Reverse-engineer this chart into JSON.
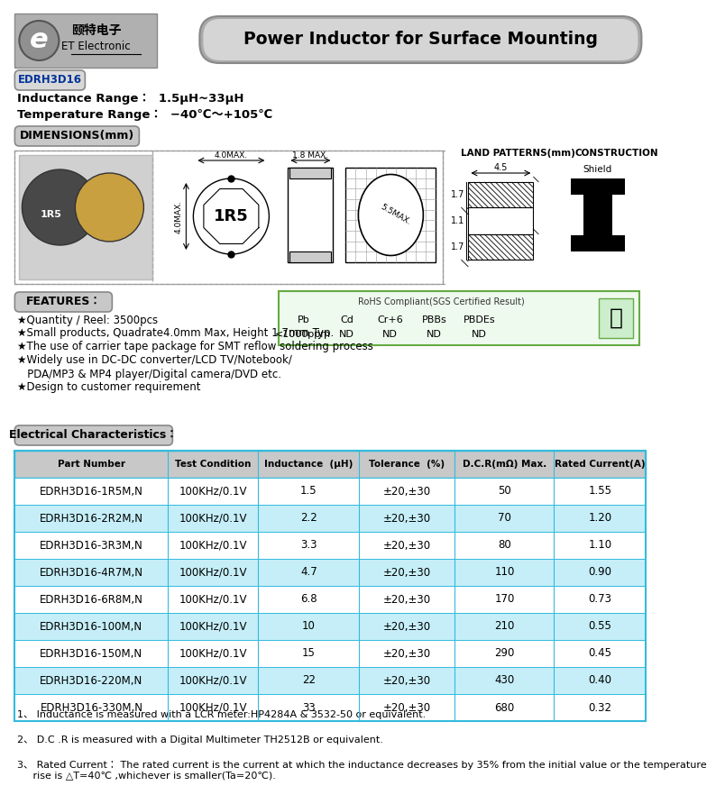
{
  "title": "Power Inductor for Surface Mounting",
  "model": "EDRH3D16",
  "inductance_range": "Inductance Range：  1.5μH~33μH",
  "temp_range": "Temperature Range：  −40℃～+105℃",
  "dimensions_label": "DIMENSIONS(mm)",
  "features_label": "FEATURES：",
  "elec_label": "Electrical Characteristics：",
  "features": [
    "★Quantity / Reel: 3500pcs",
    "★Small products, Quadrate4.0mm Max, Height 1.7mm Typ.",
    "★The use of carrier tape package for SMT reflow soldering process",
    "★Widely use in DC-DC converter/LCD TV/Notebook/",
    "   PDA/MP3 & MP4 player/Digital camera/DVD etc.",
    "★Design to customer requirement"
  ],
  "rohs_title": "RoHS Compliant(SGS Certified Result)",
  "rohs_items": [
    "Pb",
    "Cd",
    "Cr+6",
    "PBBs",
    "PBDEs"
  ],
  "rohs_values": [
    "<1000ppm",
    "ND",
    "ND",
    "ND",
    "ND"
  ],
  "land_patterns": "LAND PATTERNS(mm)",
  "construction": "CONSTRUCTION",
  "construction_type": "Shield",
  "table_headers": [
    "Part Number",
    "Test Condition",
    "Inductance  (μH)",
    "Tolerance  (%)",
    "D.C.R(mΩ) Max.",
    "Rated Current(A)"
  ],
  "table_data": [
    [
      "EDRH3D16-1R5M,N",
      "100KHz/0.1V",
      "1.5",
      "±20,±30",
      "50",
      "1.55"
    ],
    [
      "EDRH3D16-2R2M,N",
      "100KHz/0.1V",
      "2.2",
      "±20,±30",
      "70",
      "1.20"
    ],
    [
      "EDRH3D16-3R3M,N",
      "100KHz/0.1V",
      "3.3",
      "±20,±30",
      "80",
      "1.10"
    ],
    [
      "EDRH3D16-4R7M,N",
      "100KHz/0.1V",
      "4.7",
      "±20,±30",
      "110",
      "0.90"
    ],
    [
      "EDRH3D16-6R8M,N",
      "100KHz/0.1V",
      "6.8",
      "±20,±30",
      "170",
      "0.73"
    ],
    [
      "EDRH3D16-100M,N",
      "100KHz/0.1V",
      "10",
      "±20,±30",
      "210",
      "0.55"
    ],
    [
      "EDRH3D16-150M,N",
      "100KHz/0.1V",
      "15",
      "±20,±30",
      "290",
      "0.45"
    ],
    [
      "EDRH3D16-220M,N",
      "100KHz/0.1V",
      "22",
      "±20,±30",
      "430",
      "0.40"
    ],
    [
      "EDRH3D16-330M,N",
      "100KHz/0.1V",
      "33",
      "±20,±30",
      "680",
      "0.32"
    ]
  ],
  "row_colors": [
    "#ffffff",
    "#c5eef8",
    "#ffffff",
    "#c5eef8",
    "#ffffff",
    "#c5eef8",
    "#ffffff",
    "#c5eef8",
    "#ffffff"
  ],
  "notes": [
    "1、 Inductance is measured with a LCR meter:HP4284A & 3532-50 or equivalent.",
    "2、 D.C .R is measured with a Digital Multimeter TH2512B or equivalent.",
    "3、 Rated Current： The rated current is the current at which the inductance decreases by 35% from the initial value or the temperature\n     rise is △T=40℃ ,whichever is smaller(Ta=20℃)."
  ],
  "bg_color": "#ffffff",
  "header_bg": "#c8c8c8",
  "table_border": "#33bbdd",
  "section_bg": "#cccccc",
  "section_ec": "#999999"
}
